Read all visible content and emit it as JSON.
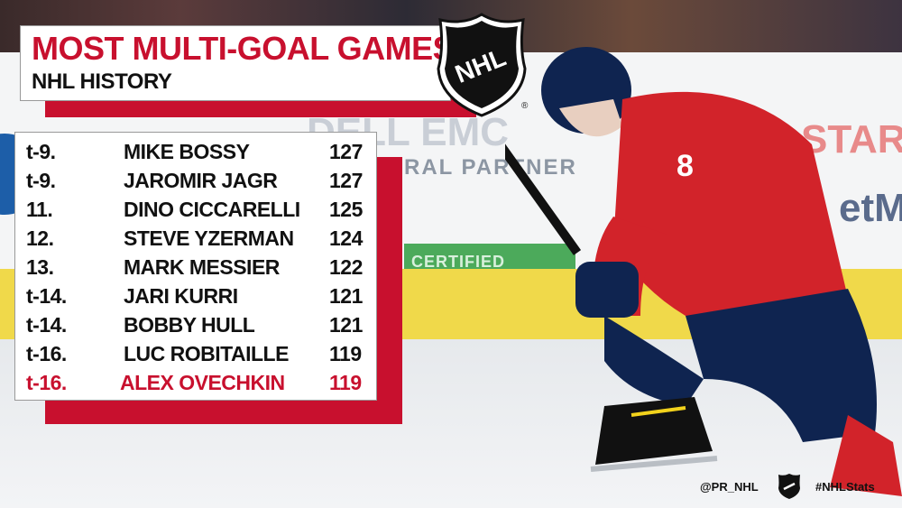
{
  "title": {
    "main": "MOST MULTI-GOAL GAMES",
    "sub": "NHL HISTORY"
  },
  "logo": {
    "text": "NHL",
    "icon": "nhl-shield-icon"
  },
  "background": {
    "board_text_1": "DELL EMC",
    "board_text_2": "RAL PARTNER",
    "board_text_3": "STAR",
    "board_text_4": "etM",
    "certified_label": "CERTIFIED",
    "player_number": "8"
  },
  "rows": [
    {
      "rank": "t-9.",
      "name": "MIKE BOSSY",
      "value": "127"
    },
    {
      "rank": "t-9.",
      "name": "JAROMIR JAGR",
      "value": "127"
    },
    {
      "rank": "11.",
      "name": "DINO CICCARELLI",
      "value": "125"
    },
    {
      "rank": "12.",
      "name": "STEVE YZERMAN",
      "value": "124"
    },
    {
      "rank": "13.",
      "name": "MARK MESSIER",
      "value": "122"
    },
    {
      "rank": "t-14.",
      "name": "JARI KURRI",
      "value": "121"
    },
    {
      "rank": "t-14.",
      "name": "BOBBY HULL",
      "value": "121"
    },
    {
      "rank": "t-16.",
      "name": "LUC ROBITAILLE",
      "value": "119"
    },
    {
      "rank": "t-16.",
      "name": "ALEX OVECHKIN",
      "value": "119"
    }
  ],
  "footer": {
    "handle": "@PR_NHL",
    "hashtag": "#NHLStats"
  },
  "colors": {
    "accent_red": "#c8102e",
    "text_dark": "#111111",
    "panel_white": "#ffffff"
  }
}
